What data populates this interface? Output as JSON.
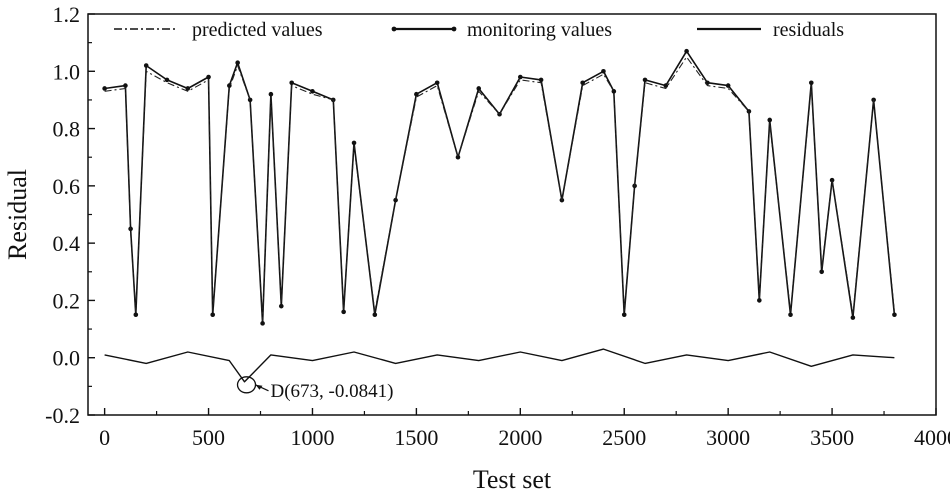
{
  "chart_data": {
    "type": "line",
    "title": "",
    "xlabel": "Test set",
    "ylabel": "Residual",
    "xlim": [
      -80,
      4000
    ],
    "ylim": [
      -0.2,
      1.2
    ],
    "x_ticks": [
      0,
      500,
      1000,
      1500,
      2000,
      2500,
      3000,
      3500,
      4000
    ],
    "x_tick_labels": [
      "0",
      "500",
      "1000",
      "1500",
      "2000",
      "2500",
      "3000",
      "3500",
      "4000"
    ],
    "y_ticks": [
      -0.2,
      0.0,
      0.2,
      0.4,
      0.6,
      0.8,
      1.0,
      1.2
    ],
    "y_tick_labels": [
      "-0.2",
      "0.0",
      "0.2",
      "0.4",
      "0.6",
      "0.8",
      "1.0",
      "1.2"
    ],
    "legend": {
      "position": "top",
      "entries": [
        {
          "label": "predicted values",
          "style": "dash-dot"
        },
        {
          "label": "monitoring values",
          "style": "line-dots"
        },
        {
          "label": "residuals",
          "style": "solid"
        }
      ]
    },
    "series": [
      {
        "name": "monitoring values",
        "style": "line-dots",
        "x": [
          0,
          100,
          125,
          150,
          200,
          300,
          400,
          500,
          520,
          600,
          640,
          700,
          760,
          800,
          850,
          900,
          1000,
          1100,
          1150,
          1200,
          1300,
          1400,
          1500,
          1600,
          1700,
          1800,
          1900,
          2000,
          2100,
          2200,
          2300,
          2400,
          2450,
          2500,
          2550,
          2600,
          2700,
          2800,
          2900,
          3000,
          3100,
          3150,
          3200,
          3300,
          3400,
          3450,
          3500,
          3600,
          3700,
          3800
        ],
        "values": [
          0.94,
          0.95,
          0.45,
          0.15,
          1.02,
          0.97,
          0.94,
          0.98,
          0.15,
          0.95,
          1.03,
          0.9,
          0.12,
          0.92,
          0.18,
          0.96,
          0.93,
          0.9,
          0.16,
          0.75,
          0.15,
          0.55,
          0.92,
          0.96,
          0.7,
          0.94,
          0.85,
          0.98,
          0.97,
          0.55,
          0.96,
          1.0,
          0.93,
          0.15,
          0.6,
          0.97,
          0.95,
          1.07,
          0.96,
          0.95,
          0.86,
          0.2,
          0.83,
          0.15,
          0.96,
          0.3,
          0.62,
          0.14,
          0.9,
          0.15
        ]
      },
      {
        "name": "predicted values",
        "style": "dash-dot",
        "x": [
          0,
          100,
          125,
          150,
          200,
          300,
          400,
          500,
          520,
          600,
          640,
          700,
          760,
          800,
          850,
          900,
          1000,
          1100,
          1150,
          1200,
          1300,
          1400,
          1500,
          1600,
          1700,
          1800,
          1900,
          2000,
          2100,
          2200,
          2300,
          2400,
          2450,
          2500,
          2550,
          2600,
          2700,
          2800,
          2900,
          3000,
          3100,
          3150,
          3200,
          3300,
          3400,
          3450,
          3500,
          3600,
          3700,
          3800
        ],
        "values": [
          0.93,
          0.94,
          0.44,
          0.16,
          1.0,
          0.96,
          0.93,
          0.97,
          0.16,
          0.94,
          1.02,
          0.9,
          0.13,
          0.91,
          0.19,
          0.95,
          0.92,
          0.9,
          0.17,
          0.74,
          0.16,
          0.55,
          0.91,
          0.95,
          0.7,
          0.93,
          0.85,
          0.97,
          0.96,
          0.55,
          0.95,
          0.99,
          0.93,
          0.16,
          0.6,
          0.96,
          0.94,
          1.05,
          0.95,
          0.94,
          0.86,
          0.21,
          0.82,
          0.16,
          0.95,
          0.31,
          0.62,
          0.15,
          0.9,
          0.16
        ]
      },
      {
        "name": "residuals",
        "style": "solid",
        "x": [
          0,
          200,
          400,
          600,
          673,
          800,
          1000,
          1200,
          1400,
          1600,
          1800,
          2000,
          2200,
          2400,
          2600,
          2800,
          3000,
          3200,
          3400,
          3600,
          3800
        ],
        "values": [
          0.01,
          -0.02,
          0.02,
          -0.01,
          -0.0841,
          0.01,
          -0.01,
          0.02,
          -0.02,
          0.01,
          -0.01,
          0.02,
          -0.01,
          0.03,
          -0.02,
          0.01,
          -0.01,
          0.02,
          -0.03,
          0.01,
          0.0
        ]
      }
    ],
    "annotations": [
      {
        "label": "D(673, -0.0841)",
        "x": 673,
        "y": -0.0841
      }
    ]
  }
}
